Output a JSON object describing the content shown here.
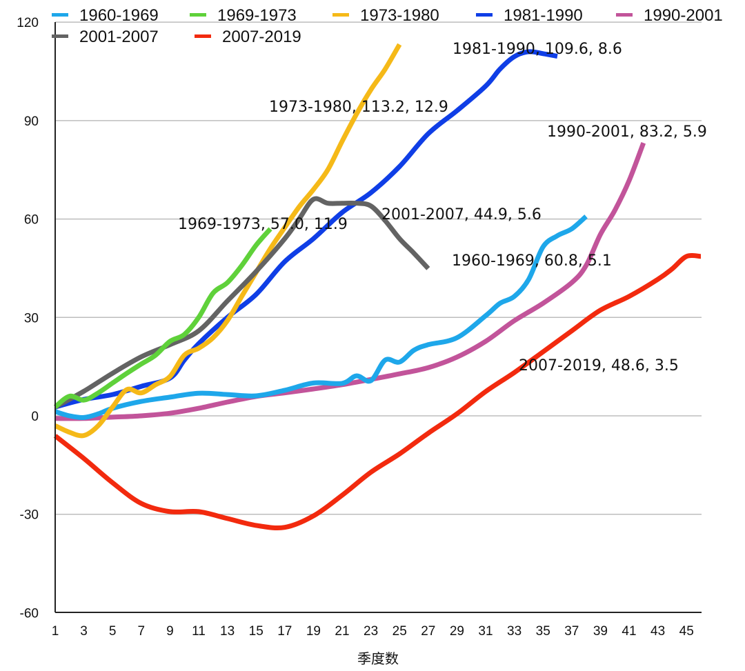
{
  "chart_data": {
    "type": "line",
    "title": "",
    "xlabel": "季度数",
    "ylabel": "",
    "xlim": [
      1,
      46
    ],
    "ylim": [
      -60,
      120
    ],
    "grid": true,
    "legend_position": "top",
    "x_ticks": [
      "1",
      "3",
      "5",
      "7",
      "9",
      "11",
      "13",
      "15",
      "17",
      "19",
      "21",
      "23",
      "25",
      "27",
      "29",
      "31",
      "33",
      "35",
      "37",
      "39",
      "41",
      "43",
      "45"
    ],
    "y_ticks": [
      "120",
      "90",
      "60",
      "30",
      "0",
      "-30",
      "-60"
    ],
    "series": [
      {
        "name": "1960-1969",
        "color": "#1ea7ea",
        "x": [
          1,
          2,
          3,
          4,
          5,
          7,
          9,
          11,
          13,
          15,
          17,
          19,
          21,
          22,
          23,
          24,
          25,
          26,
          27,
          29,
          31,
          32,
          33,
          34,
          35,
          36,
          37,
          38
        ],
        "values": [
          1.3,
          0,
          -0.5,
          0.6,
          2.3,
          4.4,
          5.7,
          6.9,
          6.5,
          6.1,
          7.8,
          10,
          9.9,
          12.2,
          10.7,
          17,
          16.4,
          20,
          21.7,
          23.8,
          30.5,
          34.3,
          36.4,
          41.6,
          51.5,
          54.9,
          57,
          60.8
        ],
        "annotation": "1960-1969, 60.8, 5.1"
      },
      {
        "name": "1969-1973",
        "color": "#5fd13a",
        "x": [
          1,
          2,
          3,
          4,
          5,
          6,
          7,
          8,
          9,
          10,
          11,
          12,
          13,
          14,
          15,
          16
        ],
        "values": [
          2.7,
          6,
          4.8,
          7,
          10,
          13,
          15.8,
          18.5,
          22.7,
          24.8,
          30,
          37.4,
          40.6,
          45.8,
          52,
          57.0
        ],
        "annotation": "1969-1973, 57.0, 11.9"
      },
      {
        "name": "1973-1980",
        "color": "#f5b918",
        "x": [
          1,
          2,
          3,
          4,
          5,
          6,
          7,
          8,
          9,
          10,
          11,
          12,
          13,
          14,
          15,
          16,
          17,
          18,
          19,
          20,
          21,
          22,
          23,
          24,
          25
        ],
        "values": [
          -3,
          -5,
          -6,
          -3,
          2.7,
          8,
          7,
          9.5,
          12,
          18.5,
          20.6,
          23.8,
          29,
          36.4,
          43.7,
          51,
          57.4,
          63.7,
          69,
          75,
          83.7,
          92,
          99.4,
          105.7,
          113.2
        ],
        "annotation": "1973-1980, 113.2, 12.9"
      },
      {
        "name": "1981-1990",
        "color": "#0f3ee6",
        "x": [
          1,
          3,
          5,
          7,
          9,
          10,
          11,
          13,
          15,
          17,
          19,
          21,
          23,
          25,
          27,
          29,
          31,
          32,
          33,
          34,
          35,
          36
        ],
        "values": [
          2.7,
          5,
          6.5,
          9,
          11.5,
          17,
          22,
          30,
          37,
          47,
          54,
          62,
          68,
          76,
          86,
          93,
          100.5,
          105.7,
          109.5,
          111,
          110.4,
          109.6
        ],
        "annotation": "1981-1990, 109.6, 8.6"
      },
      {
        "name": "1990-2001",
        "color": "#c2549a",
        "x": [
          1,
          3,
          5,
          7,
          9,
          11,
          13,
          15,
          17,
          19,
          21,
          23,
          25,
          27,
          29,
          31,
          33,
          35,
          37,
          38,
          39,
          40,
          41,
          42
        ],
        "values": [
          -0.8,
          -0.8,
          -0.4,
          0,
          0.8,
          2.3,
          4.2,
          5.9,
          7,
          8.2,
          9.5,
          11.1,
          12.8,
          14.7,
          17.9,
          22.7,
          29,
          34.3,
          40.6,
          45.8,
          55.3,
          62.6,
          71.7,
          83.2
        ],
        "annotation": "1990-2001, 83.2, 5.9"
      },
      {
        "name": "2001-2007",
        "color": "#636363",
        "x": [
          1,
          3,
          5,
          7,
          9,
          11,
          13,
          15,
          17,
          18,
          19,
          20,
          21,
          22,
          23,
          24,
          25,
          26,
          27
        ],
        "values": [
          2.7,
          7.5,
          13,
          18,
          21.7,
          25.9,
          35,
          44,
          54,
          60,
          66,
          64.8,
          64.8,
          64.8,
          64,
          59.5,
          54,
          49.6,
          44.9
        ],
        "annotation": "2001-2007, 44.9, 5.6"
      },
      {
        "name": "2007-2019",
        "color": "#f22a0e",
        "x": [
          1,
          3,
          5,
          7,
          9,
          11,
          13,
          15,
          17,
          19,
          21,
          23,
          25,
          27,
          29,
          31,
          33,
          35,
          37,
          39,
          41,
          43,
          44,
          45,
          46
        ],
        "values": [
          -6.1,
          -13,
          -20.4,
          -26.7,
          -29.2,
          -29.2,
          -31.3,
          -33.4,
          -34,
          -30.5,
          -24.2,
          -17.2,
          -11.6,
          -5.3,
          0.6,
          7.4,
          13.2,
          19.5,
          25.9,
          32.2,
          36.4,
          41.6,
          44.8,
          48.6,
          48.6
        ],
        "annotation": "2007-2019, 48.6, 3.5"
      }
    ]
  }
}
